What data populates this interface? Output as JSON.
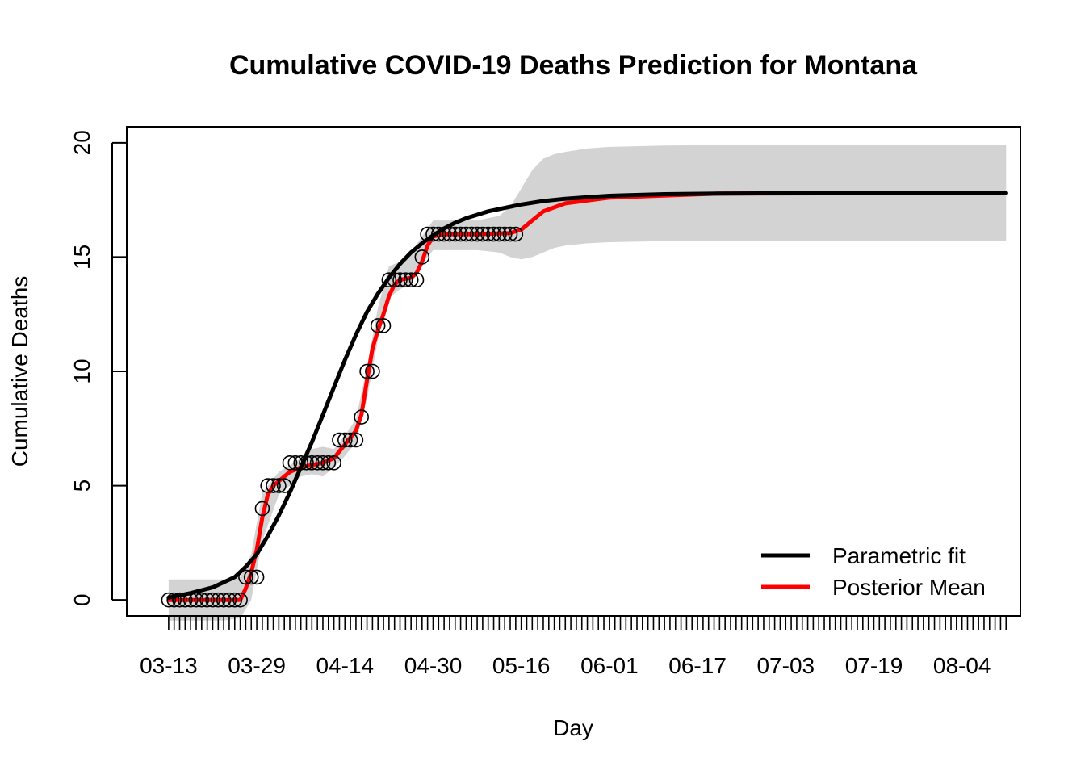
{
  "chart_data": {
    "type": "line",
    "title": "Cumulative COVID-19 Deaths Prediction for Montana",
    "xlabel": "Day",
    "ylabel": "Cumulative Deaths",
    "ylim": [
      -0.7,
      20.7
    ],
    "xlim_days": [
      -7.6,
      154.6
    ],
    "x_start_date": "03-13",
    "x_tick_labels": [
      "03-13",
      "03-29",
      "04-14",
      "04-30",
      "05-16",
      "06-01",
      "06-17",
      "07-03",
      "07-19",
      "08-04"
    ],
    "x_tick_label_days": [
      0,
      16,
      32,
      48,
      64,
      80,
      96,
      112,
      128,
      144
    ],
    "y_ticks": [
      0,
      5,
      10,
      15,
      20
    ],
    "grid": false,
    "legend_position": "bottom-right",
    "colors": {
      "parametric": "#000000",
      "posterior": "#ff0000",
      "band": "#d3d3d3",
      "observed": "#000000"
    },
    "observed": {
      "marker": "open-circle",
      "x": [
        0,
        1,
        2,
        3,
        4,
        5,
        6,
        7,
        8,
        9,
        10,
        11,
        12,
        13,
        14,
        15,
        16,
        17,
        18,
        19,
        20,
        21,
        22,
        23,
        24,
        25,
        26,
        27,
        28,
        29,
        30,
        31,
        32,
        33,
        34,
        35,
        36,
        37,
        38,
        39,
        40,
        41,
        42,
        43,
        44,
        45,
        46,
        47,
        48,
        49,
        50,
        51,
        52,
        53,
        54,
        55,
        56,
        57,
        58,
        59,
        60,
        61,
        62,
        63
      ],
      "y": [
        0,
        0,
        0,
        0,
        0,
        0,
        0,
        0,
        0,
        0,
        0,
        0,
        0,
        0,
        1,
        1,
        1,
        4,
        5,
        5,
        5,
        5,
        6,
        6,
        6,
        6,
        6,
        6,
        6,
        6,
        6,
        7,
        7,
        7,
        7,
        8,
        10,
        10,
        12,
        12,
        14,
        14,
        14,
        14,
        14,
        14,
        15,
        16,
        16,
        16,
        16,
        16,
        16,
        16,
        16,
        16,
        16,
        16,
        16,
        16,
        16,
        16,
        16,
        16
      ]
    },
    "series": [
      {
        "name": "Parametric fit",
        "x": [
          0,
          4,
          8,
          12,
          14,
          16,
          18,
          20,
          22,
          24,
          26,
          28,
          30,
          32,
          34,
          36,
          38,
          40,
          42,
          44,
          46,
          48,
          50,
          52,
          54,
          56,
          58,
          60,
          64,
          68,
          72,
          76,
          80,
          90,
          100,
          120,
          152
        ],
        "y": [
          0.1,
          0.3,
          0.55,
          1.0,
          1.45,
          2.0,
          2.8,
          3.7,
          4.7,
          5.8,
          6.9,
          8.1,
          9.3,
          10.5,
          11.6,
          12.6,
          13.4,
          14.1,
          14.7,
          15.2,
          15.6,
          15.95,
          16.25,
          16.5,
          16.7,
          16.85,
          17.0,
          17.1,
          17.3,
          17.45,
          17.55,
          17.62,
          17.68,
          17.75,
          17.78,
          17.8,
          17.8
        ]
      },
      {
        "name": "Posterior Mean",
        "x": [
          0,
          13,
          14,
          15,
          16,
          17,
          18,
          19,
          20,
          21,
          22,
          24,
          26,
          28,
          30,
          31,
          32,
          33,
          34,
          35,
          36,
          37,
          38,
          39,
          40,
          41,
          42,
          43,
          44,
          45,
          46,
          47,
          48,
          50,
          56,
          62,
          64,
          66,
          68,
          72,
          80,
          100,
          152
        ],
        "y": [
          0,
          0,
          0.5,
          1.2,
          2.2,
          3.6,
          4.6,
          5.0,
          5.2,
          5.4,
          5.6,
          5.8,
          5.9,
          6.0,
          6.2,
          6.5,
          6.8,
          7.1,
          7.4,
          8.1,
          9.6,
          11.0,
          11.8,
          12.5,
          13.3,
          13.8,
          14.0,
          14.05,
          14.1,
          14.3,
          14.8,
          15.5,
          15.9,
          16.0,
          16.0,
          16.05,
          16.2,
          16.6,
          17.0,
          17.35,
          17.6,
          17.78,
          17.8
        ]
      }
    ],
    "band": {
      "x": [
        0,
        10,
        13,
        15,
        17,
        20,
        24,
        26,
        28,
        30,
        32,
        34,
        36,
        38,
        40,
        42,
        44,
        46,
        48,
        52,
        56,
        60,
        62,
        64,
        66,
        68,
        70,
        72,
        76,
        80,
        90,
        100,
        120,
        152
      ],
      "lower": [
        -0.9,
        -0.9,
        -0.8,
        0.0,
        2.6,
        4.6,
        5.4,
        5.5,
        5.4,
        5.8,
        6.3,
        6.9,
        8.8,
        11.4,
        13.2,
        13.6,
        13.8,
        14.7,
        15.3,
        15.3,
        15.3,
        15.2,
        15.0,
        14.9,
        15.0,
        15.2,
        15.4,
        15.5,
        15.6,
        15.65,
        15.7,
        15.7,
        15.7,
        15.7
      ],
      "upper": [
        0.9,
        0.9,
        1.0,
        2.0,
        4.7,
        5.6,
        6.2,
        6.6,
        6.7,
        6.6,
        7.2,
        7.9,
        10.2,
        12.8,
        14.6,
        14.8,
        15.2,
        15.9,
        16.6,
        16.6,
        16.6,
        16.8,
        17.2,
        18.0,
        18.8,
        19.3,
        19.5,
        19.6,
        19.75,
        19.82,
        19.88,
        19.9,
        19.9,
        19.9
      ]
    }
  }
}
